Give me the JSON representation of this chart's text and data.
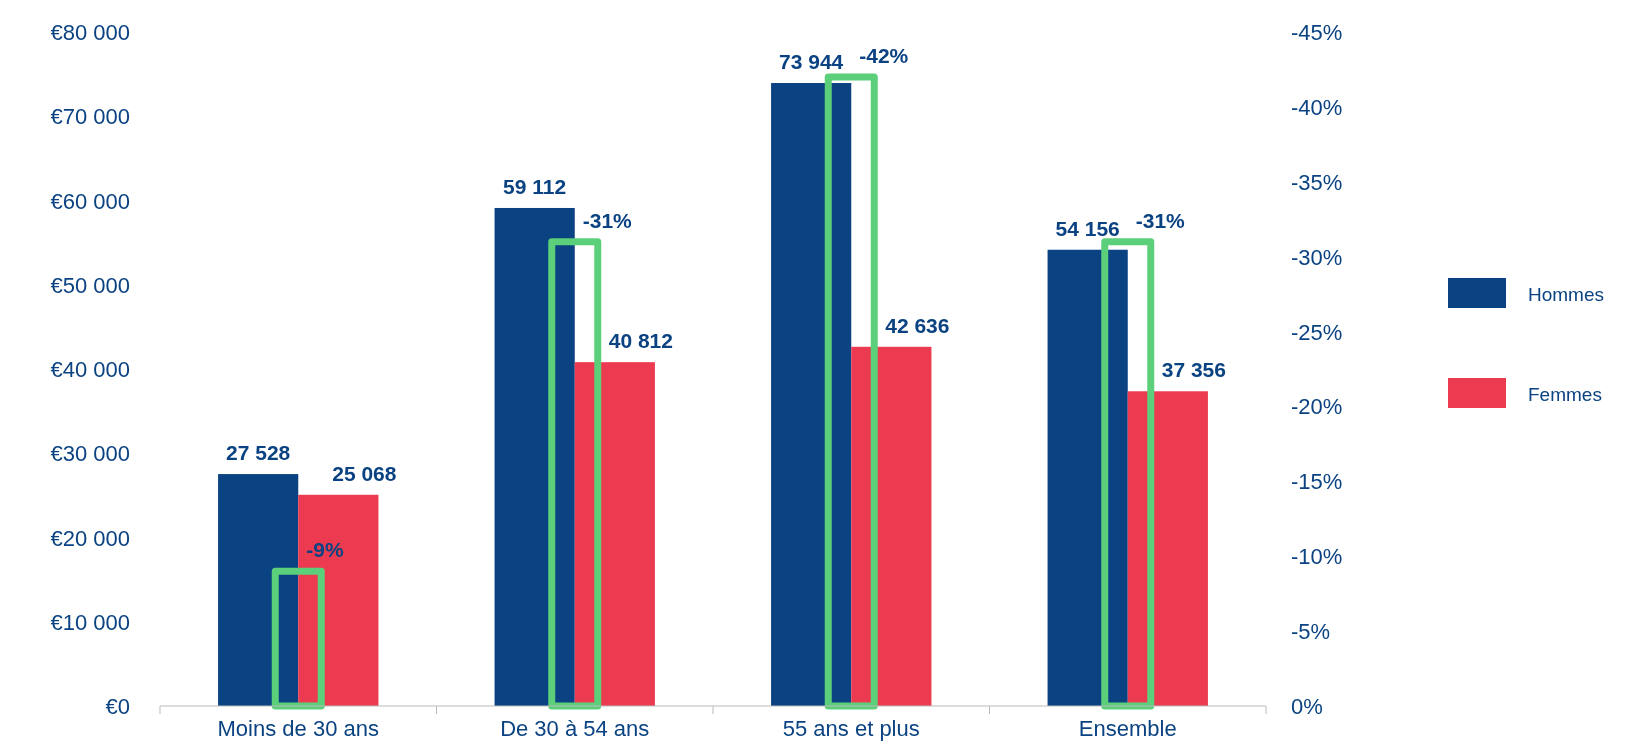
{
  "chart_data": {
    "type": "bar",
    "categories": [
      "Moins de 30 ans",
      "De 30 à 54 ans",
      "55 ans et plus",
      "Ensemble"
    ],
    "series": [
      {
        "name": "Hommes",
        "color": "#0a4282",
        "values": [
          27528,
          59112,
          73944,
          54156
        ],
        "value_labels": [
          "27 528",
          "59 112",
          "73 944",
          "54 156"
        ]
      },
      {
        "name": "Femmes",
        "color": "#ec3b50",
        "values": [
          25068,
          40812,
          42636,
          37356
        ],
        "value_labels": [
          "25 068",
          "40 812",
          "42 636",
          "37 356"
        ]
      },
      {
        "color": "#5ccf7a",
        "axis": "y2",
        "values": [
          -9,
          -31,
          -42,
          -31
        ],
        "value_labels": [
          "-9%",
          "-31%",
          "-42%",
          "-31%"
        ]
      }
    ],
    "ylim": [
      0,
      80000
    ],
    "yticks": [
      {
        "value": 0,
        "label": "€0"
      },
      {
        "value": 10000,
        "label": "€10 000"
      },
      {
        "value": 20000,
        "label": "€20 000"
      },
      {
        "value": 30000,
        "label": "€30 000"
      },
      {
        "value": 40000,
        "label": "€40 000"
      },
      {
        "value": 50000,
        "label": "€50 000"
      },
      {
        "value": 60000,
        "label": "€60 000"
      },
      {
        "value": 70000,
        "label": "€70 000"
      },
      {
        "value": 80000,
        "label": "€80 000"
      }
    ],
    "y2lim": [
      0,
      -45
    ],
    "y2ticks": [
      {
        "value": 0,
        "label": "0%"
      },
      {
        "value": -5,
        "label": "-5%"
      },
      {
        "value": -10,
        "label": "-10%"
      },
      {
        "value": -15,
        "label": "-15%"
      },
      {
        "value": -20,
        "label": "-20%"
      },
      {
        "value": -25,
        "label": "-25%"
      },
      {
        "value": -30,
        "label": "-30%"
      },
      {
        "value": -35,
        "label": "-35%"
      },
      {
        "value": -40,
        "label": "-40%"
      },
      {
        "value": -45,
        "label": "-45%"
      }
    ],
    "legend": "right",
    "grid": false
  }
}
